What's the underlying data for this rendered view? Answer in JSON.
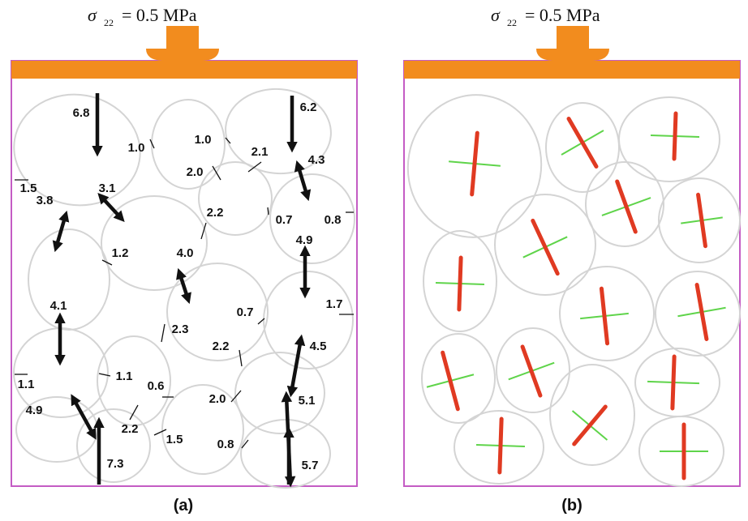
{
  "panels": [
    {
      "title": {
        "symbol": "σ",
        "subscript": "22",
        "rest": "= 0.5 MPa"
      },
      "caption": "(a)",
      "forces": [
        "6.8",
        "1.0",
        "1.0",
        "6.2",
        "2.1",
        "2.0",
        "4.3",
        "1.5",
        "3.8",
        "3.1",
        "2.2",
        "0.7",
        "0.8",
        "4.9",
        "1.2",
        "4.0",
        "4.1",
        "0.7",
        "1.7",
        "2.3",
        "2.2",
        "4.5",
        "1.1",
        "1.1",
        "0.6",
        "2.0",
        "4.9",
        "5.1",
        "2.2",
        "1.5",
        "0.8",
        "7.3",
        "5.7"
      ]
    },
    {
      "title": {
        "symbol": "σ",
        "subscript": "22",
        "rest": "= 0.5 MPa"
      },
      "caption": "(b)"
    }
  ]
}
